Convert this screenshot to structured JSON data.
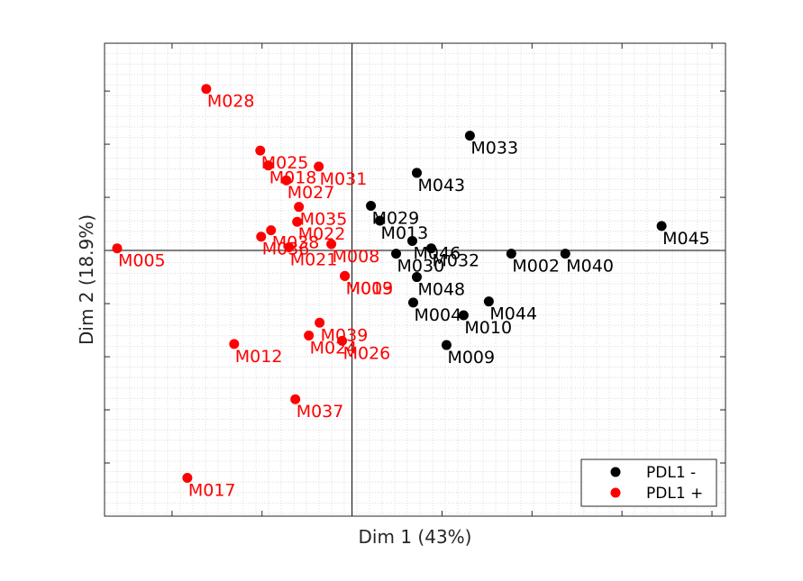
{
  "chart_data": {
    "type": "scatter",
    "xlabel": "Dim 1 (43%)",
    "ylabel": "Dim 2 (18.9%)",
    "xlim": [
      -2.75,
      4.15
    ],
    "ylim": [
      -2.5,
      1.95
    ],
    "grid": "minor-dotted",
    "legend_position": "bottom-right",
    "colors": {
      "PDL1 -": "#000000",
      "PDL1 +": "#ff0000"
    },
    "series": [
      {
        "name": "PDL1 -",
        "points": [
          {
            "label": "M033",
            "x": 1.31,
            "y": 1.08
          },
          {
            "label": "M043",
            "x": 0.72,
            "y": 0.73
          },
          {
            "label": "M029",
            "x": 0.21,
            "y": 0.42
          },
          {
            "label": "M013",
            "x": 0.31,
            "y": 0.28
          },
          {
            "label": "M046",
            "x": 0.67,
            "y": 0.09
          },
          {
            "label": "M032",
            "x": 0.88,
            "y": 0.02
          },
          {
            "label": "M030",
            "x": 0.49,
            "y": -0.03
          },
          {
            "label": "M002",
            "x": 1.77,
            "y": -0.03
          },
          {
            "label": "M040",
            "x": 2.37,
            "y": -0.03
          },
          {
            "label": "M045",
            "x": 3.44,
            "y": 0.23
          },
          {
            "label": "M048",
            "x": 0.72,
            "y": -0.25
          },
          {
            "label": "M004",
            "x": 0.68,
            "y": -0.49
          },
          {
            "label": "M044",
            "x": 1.52,
            "y": -0.48
          },
          {
            "label": "M010",
            "x": 1.24,
            "y": -0.61
          },
          {
            "label": "M009",
            "x": 1.05,
            "y": -0.89
          }
        ]
      },
      {
        "name": "PDL1 +",
        "points": [
          {
            "label": "M028",
            "x": -1.62,
            "y": 1.52
          },
          {
            "label": "M025",
            "x": -1.02,
            "y": 0.94
          },
          {
            "label": "M018",
            "x": -0.93,
            "y": 0.8
          },
          {
            "label": "M027",
            "x": -0.73,
            "y": 0.66
          },
          {
            "label": "M031",
            "x": -0.37,
            "y": 0.79
          },
          {
            "label": "M035",
            "x": -0.59,
            "y": 0.41
          },
          {
            "label": "M022",
            "x": -0.61,
            "y": 0.27
          },
          {
            "label": "M038",
            "x": -0.9,
            "y": 0.19
          },
          {
            "label": "M021",
            "x": -0.7,
            "y": 0.03
          },
          {
            "label": "M036",
            "x": -1.01,
            "y": 0.13
          },
          {
            "label": "M008",
            "x": -0.23,
            "y": 0.06
          },
          {
            "label": "M003",
            "x": -0.08,
            "y": -0.24
          },
          {
            "label": "M019",
            "x": -0.08,
            "y": -0.24
          },
          {
            "label": "M005",
            "x": -2.61,
            "y": 0.02
          },
          {
            "label": "M039",
            "x": -0.36,
            "y": -0.68
          },
          {
            "label": "M024",
            "x": -0.48,
            "y": -0.8
          },
          {
            "label": "M026",
            "x": -0.11,
            "y": -0.85
          },
          {
            "label": "M012",
            "x": -1.31,
            "y": -0.88
          },
          {
            "label": "M037",
            "x": -0.63,
            "y": -1.4
          },
          {
            "label": "M017",
            "x": -1.83,
            "y": -2.14
          }
        ]
      }
    ]
  },
  "legend": {
    "items": [
      {
        "label": "PDL1 -",
        "color": "#000000"
      },
      {
        "label": "PDL1 +",
        "color": "#ff0000"
      }
    ]
  }
}
